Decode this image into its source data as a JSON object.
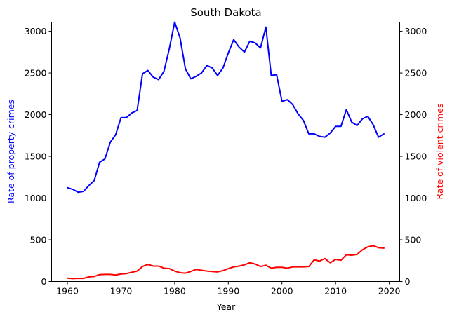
{
  "chart_data": {
    "type": "line",
    "title": "South Dakota",
    "xlabel": "Year",
    "ylabel_left": "Rate of property crimes",
    "ylabel_right": "Rate of violent crimes",
    "xlim": [
      1957.05,
      2021.95
    ],
    "ylim_left": [
      0,
      3110
    ],
    "ylim_right": [
      0,
      3110
    ],
    "x_ticks": [
      1960,
      1970,
      1980,
      1990,
      2000,
      2010,
      2020
    ],
    "y_ticks": [
      0,
      500,
      1000,
      1500,
      2000,
      2500,
      3000
    ],
    "grid": false,
    "x": [
      1960,
      1961,
      1962,
      1963,
      1964,
      1965,
      1966,
      1967,
      1968,
      1969,
      1970,
      1971,
      1972,
      1973,
      1974,
      1975,
      1976,
      1977,
      1978,
      1979,
      1980,
      1981,
      1982,
      1983,
      1984,
      1985,
      1986,
      1987,
      1988,
      1989,
      1990,
      1991,
      1992,
      1993,
      1994,
      1995,
      1996,
      1997,
      1998,
      1999,
      2000,
      2001,
      2002,
      2003,
      2004,
      2005,
      2006,
      2007,
      2008,
      2009,
      2010,
      2011,
      2012,
      2013,
      2014,
      2015,
      2016,
      2017,
      2018,
      2019
    ],
    "series": [
      {
        "name": "Rate of property crimes",
        "axis": "left",
        "color": "#0000ff",
        "values": [
          1125,
          1105,
          1070,
          1080,
          1150,
          1210,
          1430,
          1470,
          1670,
          1760,
          1965,
          1965,
          2020,
          2050,
          2490,
          2530,
          2450,
          2420,
          2520,
          2790,
          3110,
          2920,
          2550,
          2430,
          2460,
          2500,
          2590,
          2560,
          2470,
          2560,
          2740,
          2900,
          2810,
          2750,
          2880,
          2860,
          2800,
          3050,
          2470,
          2480,
          2160,
          2180,
          2120,
          2010,
          1930,
          1770,
          1770,
          1740,
          1730,
          1780,
          1860,
          1860,
          2060,
          1910,
          1870,
          1950,
          1980,
          1880,
          1730,
          1770
        ]
      },
      {
        "name": "Rate of violent crimes",
        "axis": "right",
        "color": "#ff0000",
        "values": [
          40,
          35,
          38,
          37,
          55,
          60,
          82,
          85,
          85,
          78,
          90,
          95,
          110,
          125,
          180,
          205,
          185,
          185,
          160,
          155,
          125,
          105,
          100,
          120,
          145,
          135,
          125,
          120,
          115,
          130,
          155,
          175,
          185,
          200,
          225,
          210,
          180,
          195,
          160,
          170,
          170,
          160,
          175,
          175,
          175,
          180,
          260,
          245,
          275,
          225,
          265,
          255,
          320,
          315,
          325,
          380,
          415,
          430,
          405,
          400
        ]
      }
    ]
  }
}
